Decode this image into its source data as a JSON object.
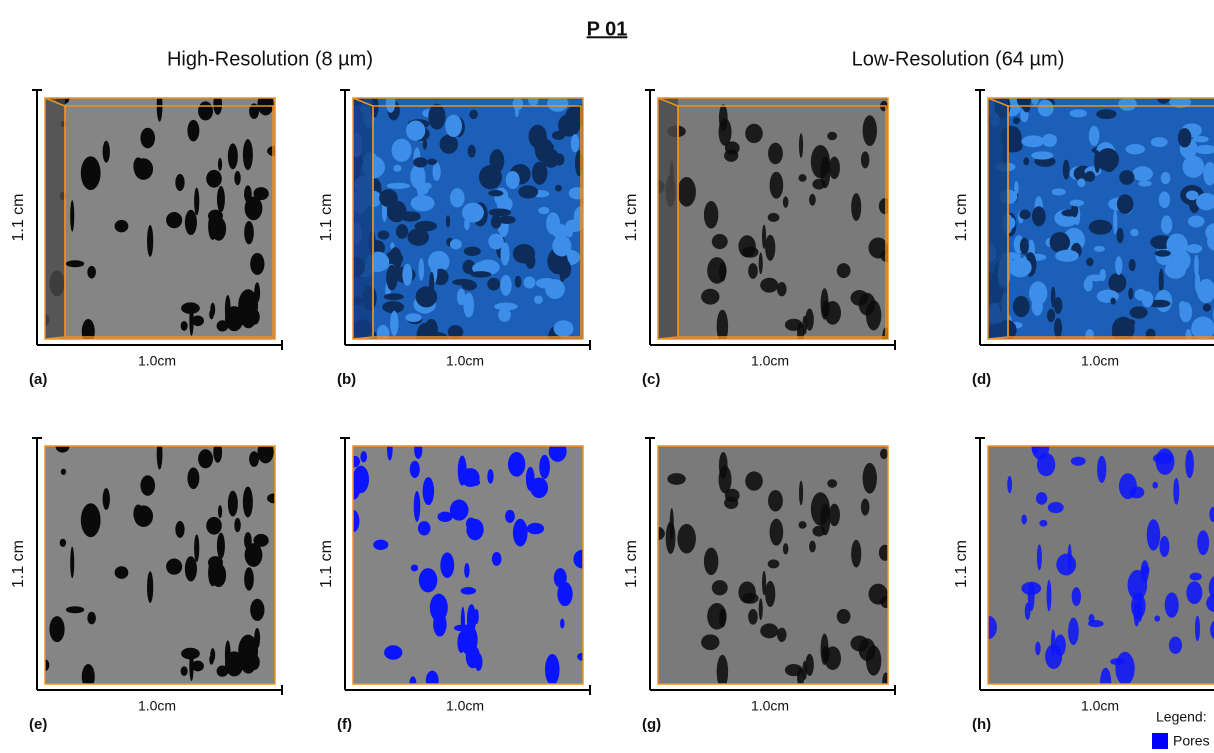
{
  "header": {
    "title": "P 01",
    "columns": [
      "High-Resolution (8 µm)",
      "Low-Resolution (64 µm)"
    ]
  },
  "panels": [
    {
      "label": "(a)",
      "y_label": "1.1 cm",
      "x_label": "1.0cm"
    },
    {
      "label": "(b)",
      "y_label": "1.1 cm",
      "x_label": "1.0cm"
    },
    {
      "label": "(c)",
      "y_label": "1.1 cm",
      "x_label": "1.0cm"
    },
    {
      "label": "(d)",
      "y_label": "1.1 cm",
      "x_label": "1.0cm"
    },
    {
      "label": "(e)",
      "y_label": "1.1 cm",
      "x_label": "1.0cm"
    },
    {
      "label": "(f)",
      "y_label": "1.1 cm",
      "x_label": "1.0cm"
    },
    {
      "label": "(g)",
      "y_label": "1.1 cm",
      "x_label": "1.0cm"
    },
    {
      "label": "(h)",
      "y_label": "1.1 cm",
      "x_label": "1.0cm"
    }
  ],
  "legend": {
    "title": "Legend:",
    "items": [
      "Pores"
    ]
  }
}
